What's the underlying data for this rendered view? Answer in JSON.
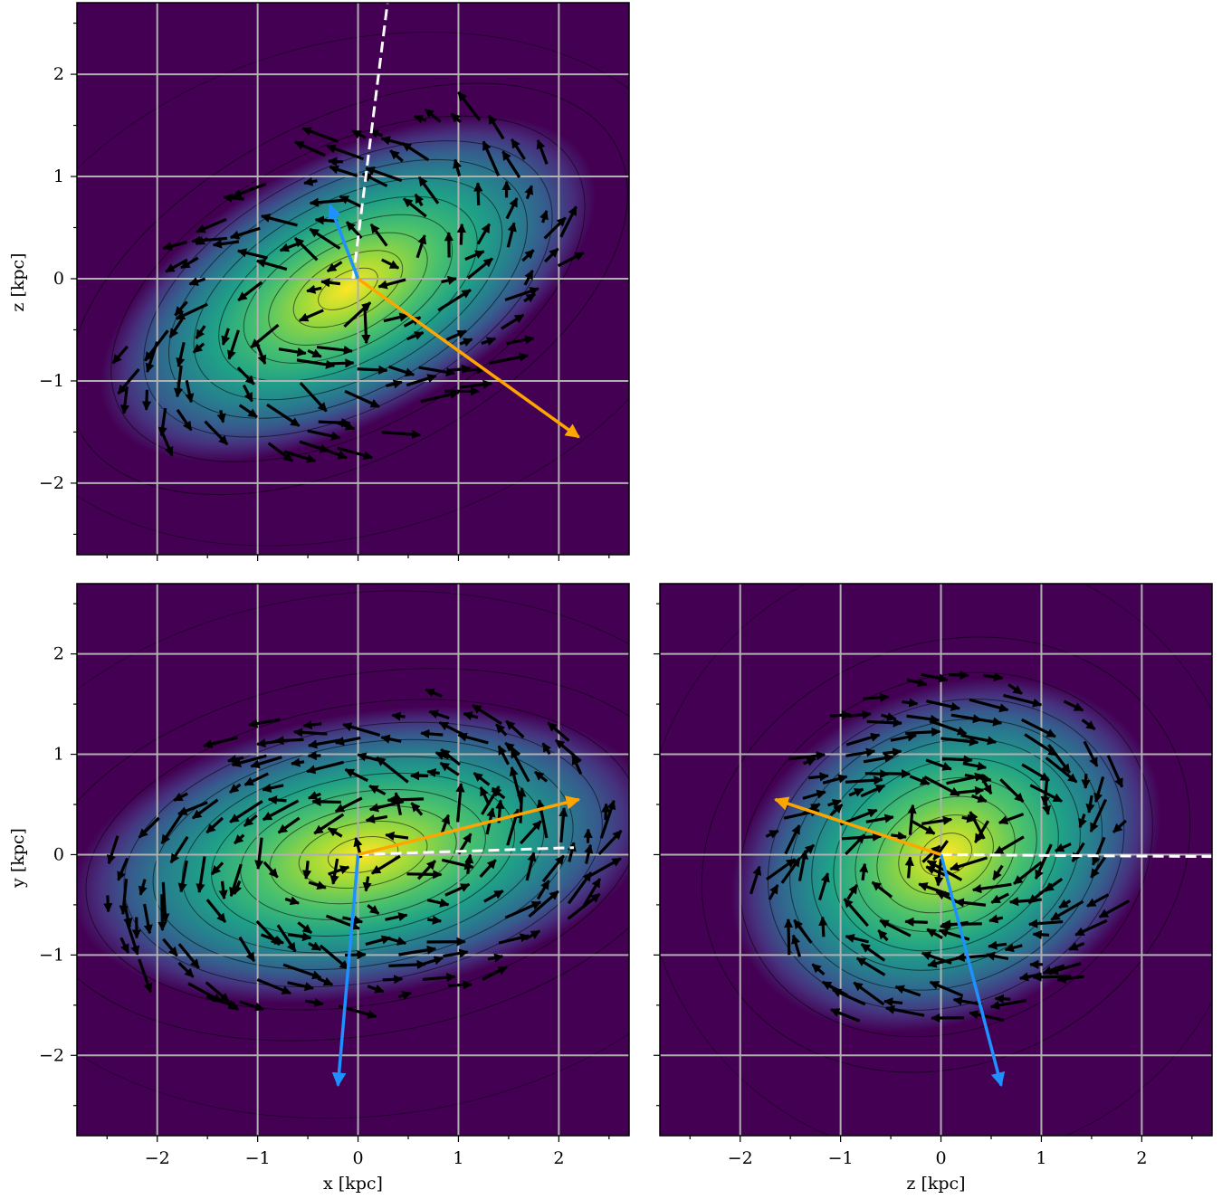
{
  "colors": {
    "background_low": "#440154",
    "background_high": "#fde725",
    "grid": "#b0b0b0",
    "vectors": "#000000",
    "orange_arrow": "#ffa500",
    "blue_arrow": "#1e90ff",
    "dashed_line": "#ffffff"
  },
  "chart_data": [
    {
      "id": "xz",
      "type": "heatmap",
      "description_of_marks": "density map with contours, velocity vector field and principal-axis arrows",
      "xlabel": "",
      "ylabel": "z [kpc]",
      "xlim": [
        -2.8,
        2.7
      ],
      "ylim": [
        -2.7,
        2.7
      ],
      "xticks": [],
      "yticks": [
        "−2",
        "−1",
        "0",
        "1",
        "2"
      ],
      "ytick_values": [
        -2,
        -1,
        0,
        1,
        2
      ],
      "grid": true,
      "density": {
        "center": [
          -0.1,
          -0.1
        ],
        "sigma_major": 1.15,
        "sigma_minor": 0.55,
        "angle_deg": 28
      },
      "orange_arrow": {
        "from": [
          0,
          0
        ],
        "to": [
          2.2,
          -1.55
        ]
      },
      "blue_arrow": {
        "from": [
          0,
          0
        ],
        "to": [
          -0.28,
          0.72
        ]
      },
      "dashed_line": {
        "from": [
          -0.05,
          0
        ],
        "to": [
          0.3,
          2.75
        ]
      },
      "field": {
        "rotation": 1,
        "angle_deg": 28
      }
    },
    {
      "id": "xy",
      "type": "heatmap",
      "description_of_marks": "density map with contours, velocity vector field and principal-axis arrows",
      "xlabel": "x [kpc]",
      "ylabel": "y [kpc]",
      "xlim": [
        -2.8,
        2.7
      ],
      "ylim": [
        -2.8,
        2.7
      ],
      "xticks": [
        "−2",
        "−1",
        "0",
        "1",
        "2"
      ],
      "xtick_values": [
        -2,
        -1,
        0,
        1,
        2
      ],
      "yticks": [
        "−2",
        "−1",
        "0",
        "1",
        "2"
      ],
      "ytick_values": [
        -2,
        -1,
        0,
        1,
        2
      ],
      "grid": true,
      "density": {
        "center": [
          0.05,
          0.0
        ],
        "sigma_major": 1.25,
        "sigma_minor": 0.6,
        "angle_deg": 10
      },
      "orange_arrow": {
        "from": [
          0,
          0
        ],
        "to": [
          2.2,
          0.55
        ]
      },
      "blue_arrow": {
        "from": [
          0,
          0
        ],
        "to": [
          -0.2,
          -2.3
        ]
      },
      "dashed_line": {
        "from": [
          0,
          0
        ],
        "to": [
          2.15,
          0.07
        ]
      },
      "field": {
        "rotation": 1,
        "angle_deg": 10
      }
    },
    {
      "id": "zy",
      "type": "heatmap",
      "description_of_marks": "density map with contours, velocity vector field and principal-axis arrows",
      "xlabel": "z [kpc]",
      "ylabel": "",
      "xlim": [
        -2.8,
        2.7
      ],
      "ylim": [
        -2.8,
        2.7
      ],
      "xticks": [
        "−2",
        "−1",
        "0",
        "1",
        "2"
      ],
      "xtick_values": [
        -2,
        -1,
        0,
        1,
        2
      ],
      "yticks": [],
      "grid": true,
      "density": {
        "center": [
          0.05,
          0.0
        ],
        "sigma_major": 0.95,
        "sigma_minor": 0.7,
        "angle_deg": 25
      },
      "orange_arrow": {
        "from": [
          0,
          0
        ],
        "to": [
          -1.65,
          0.55
        ]
      },
      "blue_arrow": {
        "from": [
          0,
          0
        ],
        "to": [
          0.6,
          -2.3
        ]
      },
      "dashed_line": {
        "from": [
          0,
          0
        ],
        "to": [
          2.75,
          -0.02
        ]
      },
      "field": {
        "rotation": -1,
        "angle_deg": 25
      }
    }
  ]
}
